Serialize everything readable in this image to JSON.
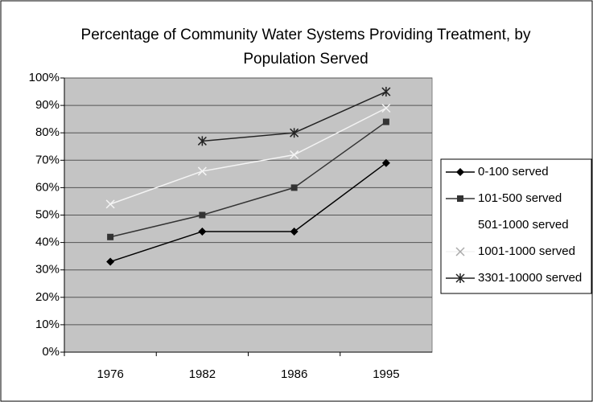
{
  "chart_data": {
    "type": "line",
    "title": "Percentage of Community Water Systems Providing Treatment, by Population Served",
    "categories": [
      "1976",
      "1982",
      "1986",
      "1995"
    ],
    "series": [
      {
        "name": "0-100 served",
        "color": "#000000",
        "marker": "diamond",
        "values": [
          33,
          44,
          44,
          69
        ]
      },
      {
        "name": "101-500 served",
        "color": "#333333",
        "marker": "square",
        "values": [
          42,
          50,
          60,
          84
        ]
      },
      {
        "name": "501-1000 served",
        "color": "#ffffff",
        "marker": "none",
        "values": [
          null,
          null,
          null,
          null
        ]
      },
      {
        "name": "1001-1000 served",
        "color": "#f4f4f4",
        "marker": "x",
        "values": [
          54,
          66,
          72,
          89
        ]
      },
      {
        "name": "3301-10000 served",
        "color": "#222222",
        "marker": "star",
        "values": [
          null,
          77,
          80,
          95
        ]
      }
    ],
    "ylim": [
      0,
      100
    ],
    "yticks": [
      {
        "value": 0,
        "label": "0%"
      },
      {
        "value": 10,
        "label": "10%"
      },
      {
        "value": 20,
        "label": "20%"
      },
      {
        "value": 30,
        "label": "30%"
      },
      {
        "value": 40,
        "label": "40%"
      },
      {
        "value": 50,
        "label": "50%"
      },
      {
        "value": 60,
        "label": "60%"
      },
      {
        "value": 70,
        "label": "70%"
      },
      {
        "value": 80,
        "label": "80%"
      },
      {
        "value": 90,
        "label": "90%"
      },
      {
        "value": 100,
        "label": "100%"
      }
    ],
    "grid": true,
    "legend": "right"
  }
}
